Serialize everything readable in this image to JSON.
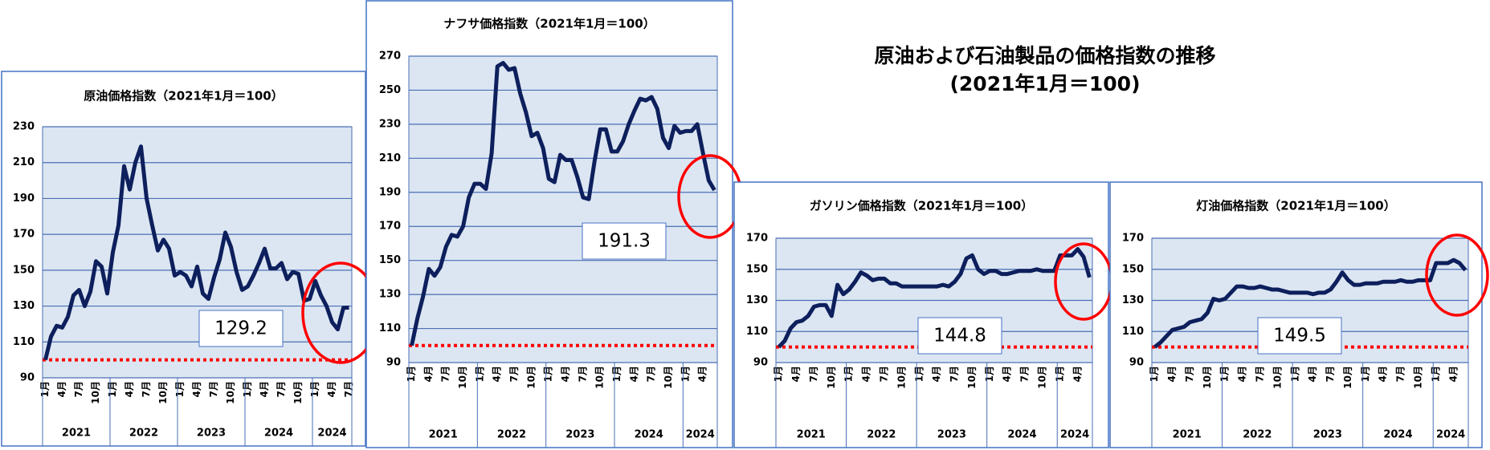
{
  "page_title": [
    "原油および石油製品の価格指数の推移",
    "(2021年1月＝100)"
  ],
  "chart_data": [
    {
      "type": "line",
      "title": "原油価格指数（2021年1月＝100）",
      "categories": [
        "1月",
        null,
        null,
        "4月",
        null,
        null,
        "7月",
        null,
        null,
        "10月",
        null,
        null,
        "1月",
        null,
        null,
        "4月",
        null,
        null,
        "7月",
        null,
        null,
        "10月",
        null,
        null,
        "1月",
        null,
        null,
        "4月",
        null,
        null,
        "7月",
        null,
        null,
        "10月",
        null,
        null,
        "1月",
        null,
        null,
        "4月",
        null,
        null,
        "7月",
        null,
        null,
        "10月",
        null,
        null,
        "1月",
        null,
        null,
        "4月",
        null,
        null,
        "7月"
      ],
      "year_labels": [
        "2021",
        "2022",
        "2023",
        "2024",
        "2024"
      ],
      "series": [
        {
          "color": "#0d1f5c",
          "values": [
            100,
            113,
            119,
            118,
            124,
            136,
            139,
            130,
            138,
            155,
            152,
            137,
            160,
            175,
            208,
            195,
            210,
            219,
            190,
            175,
            161,
            167,
            162,
            147,
            149,
            147,
            141,
            152,
            137,
            134,
            146,
            156,
            171,
            163,
            149,
            139,
            141,
            147,
            154,
            162,
            151,
            151,
            154,
            145,
            149,
            148,
            133,
            134,
            144,
            136,
            130,
            121,
            117,
            129,
            129.2
          ]
        }
      ],
      "reference_line": {
        "value": 100,
        "color": "#ff0000"
      },
      "ylim": [
        90,
        230
      ],
      "yticks": [
        90,
        110,
        130,
        150,
        170,
        190,
        210,
        230
      ],
      "grid": true
    },
    {
      "type": "line",
      "title": "ナフサ価格指数（2021年1月＝100）",
      "categories": [
        "1月",
        null,
        null,
        "4月",
        null,
        null,
        "7月",
        null,
        null,
        "10月",
        null,
        null,
        "1月",
        null,
        null,
        "4月",
        null,
        null,
        "7月",
        null,
        null,
        "10月",
        null,
        null,
        "1月",
        null,
        null,
        "4月",
        null,
        null,
        "7月",
        null,
        null,
        "10月",
        null,
        null,
        "1月",
        null,
        null,
        "4月",
        null,
        null,
        "7月",
        null,
        null,
        "10月",
        null,
        null,
        "1月",
        null,
        null,
        "4月",
        null,
        null
      ],
      "year_labels": [
        "2021",
        "2022",
        "2023",
        "2024",
        "2024"
      ],
      "series": [
        {
          "color": "#0d1f5c",
          "values": [
            100,
            116,
            129,
            145,
            141,
            146,
            158,
            165,
            164,
            170,
            187,
            195,
            195,
            192,
            213,
            264,
            266,
            262,
            263,
            248,
            237,
            223,
            225,
            216,
            198,
            196,
            212,
            209,
            209,
            199,
            187,
            186,
            208,
            227,
            227,
            214,
            214,
            220,
            230,
            238,
            245,
            244,
            246,
            239,
            222,
            216,
            229,
            225,
            226,
            226,
            230,
            213,
            197,
            191.3
          ]
        }
      ],
      "reference_line": {
        "value": 100,
        "color": "#ff0000"
      },
      "ylim": [
        90,
        270
      ],
      "yticks": [
        90,
        110,
        130,
        150,
        170,
        190,
        210,
        230,
        250,
        270
      ],
      "grid": true
    },
    {
      "type": "line",
      "title": "ガソリン価格指数（2021年1月＝100）",
      "categories": [
        "1月",
        null,
        null,
        "4月",
        null,
        null,
        "7月",
        null,
        null,
        "10月",
        null,
        null,
        "1月",
        null,
        null,
        "4月",
        null,
        null,
        "7月",
        null,
        null,
        "10月",
        null,
        null,
        "1月",
        null,
        null,
        "4月",
        null,
        null,
        "7月",
        null,
        null,
        "10月",
        null,
        null,
        "1月",
        null,
        null,
        "4月",
        null,
        null,
        "7月",
        null,
        null,
        "10月",
        null,
        null,
        "1月",
        null,
        null,
        "4月",
        null,
        null
      ],
      "year_labels": [
        "2021",
        "2022",
        "2023",
        "2024",
        "2024"
      ],
      "series": [
        {
          "color": "#0d1f5c",
          "values": [
            100,
            104,
            112,
            116,
            117,
            120,
            126,
            127,
            127,
            120,
            140,
            134,
            137,
            142,
            148,
            146,
            143,
            144,
            144,
            141,
            141,
            139,
            139,
            139,
            139,
            139,
            139,
            139,
            140,
            139,
            142,
            147,
            157,
            159,
            150,
            147,
            149,
            149,
            147,
            147,
            148,
            149,
            149,
            149,
            150,
            149,
            149,
            149,
            159,
            159,
            159,
            163,
            158,
            144.8
          ]
        }
      ],
      "reference_line": {
        "value": 100,
        "color": "#ff0000"
      },
      "ylim": [
        90,
        170
      ],
      "yticks": [
        90,
        110,
        130,
        150,
        170
      ],
      "grid": true
    },
    {
      "type": "line",
      "title": "灯油価格指数（2021年1月＝100）",
      "categories": [
        "1月",
        null,
        null,
        "4月",
        null,
        null,
        "7月",
        null,
        null,
        "10月",
        null,
        null,
        "1月",
        null,
        null,
        "4月",
        null,
        null,
        "7月",
        null,
        null,
        "10月",
        null,
        null,
        "1月",
        null,
        null,
        "4月",
        null,
        null,
        "7月",
        null,
        null,
        "10月",
        null,
        null,
        "1月",
        null,
        null,
        "4月",
        null,
        null,
        "7月",
        null,
        null,
        "10月",
        null,
        null,
        "1月",
        null,
        null,
        "4月",
        null,
        null
      ],
      "year_labels": [
        "2021",
        "2022",
        "2023",
        "2024",
        "2024"
      ],
      "series": [
        {
          "color": "#0d1f5c",
          "values": [
            100,
            103,
            107,
            111,
            112,
            113,
            116,
            117,
            118,
            122,
            131,
            130,
            131,
            135,
            139,
            139,
            138,
            138,
            139,
            138,
            137,
            137,
            136,
            135,
            135,
            135,
            135,
            134,
            135,
            135,
            137,
            142,
            148,
            143,
            140,
            140,
            141,
            141,
            141,
            142,
            142,
            142,
            143,
            142,
            142,
            143,
            143,
            143,
            154,
            154,
            154,
            156,
            154,
            149.5
          ]
        }
      ],
      "reference_line": {
        "value": 100,
        "color": "#ff0000"
      },
      "ylim": [
        90,
        170
      ],
      "yticks": [
        90,
        110,
        130,
        150,
        170
      ],
      "grid": true
    }
  ]
}
